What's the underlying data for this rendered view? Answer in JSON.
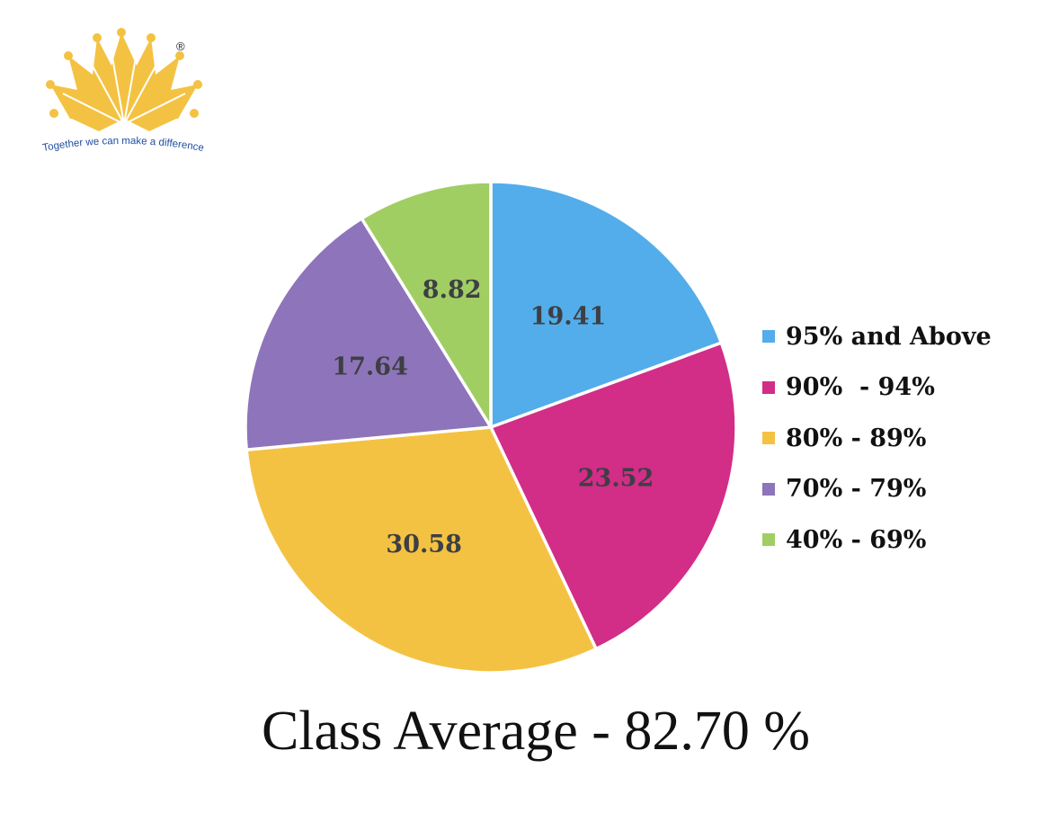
{
  "logo": {
    "tagline": "Together we can make a difference",
    "registered_mark": "®",
    "color": "#F4C242"
  },
  "chart_data": {
    "type": "pie",
    "title": "",
    "categories": [
      "95% and Above",
      "90%  - 94%",
      "80% - 89%",
      "70% - 79%",
      "40% - 69%"
    ],
    "values": [
      19.41,
      23.52,
      30.58,
      17.64,
      8.82
    ],
    "colors": [
      "#52ADEA",
      "#D22D87",
      "#F4C242",
      "#8E74BA",
      "#A0CE63"
    ],
    "data_labels": [
      "19.41",
      "23.52",
      "30.58",
      "17.64",
      "8.82"
    ],
    "start_angle": "12 o'clock",
    "direction": "clockwise",
    "legend_placement": "right"
  },
  "footer": {
    "class_average": "Class Average - 82.70 %"
  }
}
